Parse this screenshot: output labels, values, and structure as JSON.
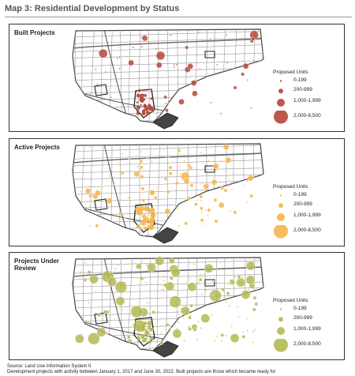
{
  "map_title": "Map 3: Residential Development by Status",
  "panels": [
    {
      "label": "Built Projects",
      "color": "#b5473a",
      "dot_density": "sparse"
    },
    {
      "label": "Active Projects",
      "color": "#f6b54a",
      "dot_density": "medium"
    },
    {
      "label": "Projects Under Review",
      "color": "#b5b953",
      "dot_density": "dense"
    }
  ],
  "legend": {
    "title": "Proposed Units",
    "classes": [
      "0-199",
      "200-999",
      "1,000-1,999",
      "2,000-8,500"
    ]
  },
  "source": {
    "line1": "Source: Land Use Information System II",
    "line2": "Development projects with activity between January 1, 2017 and June 30, 2022. Built projects are those which became ready for"
  }
}
